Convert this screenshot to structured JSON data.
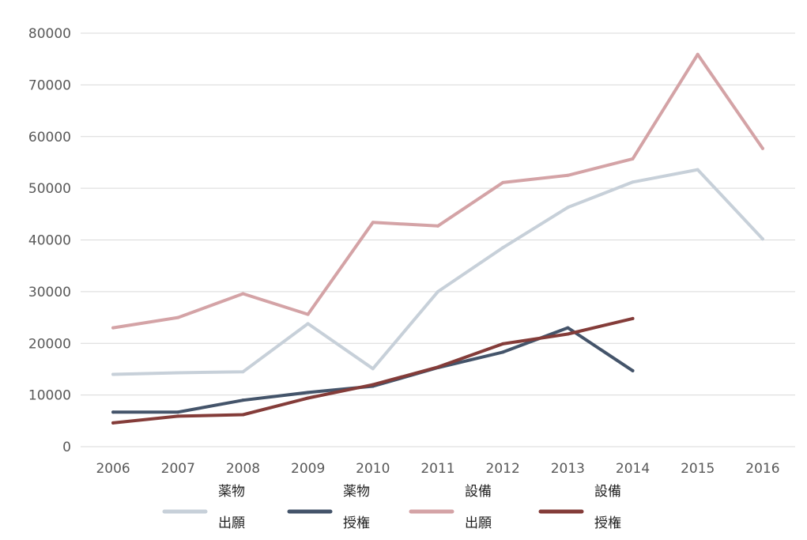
{
  "chart_data": {
    "type": "line",
    "categories": [
      "2006",
      "2007",
      "2008",
      "2009",
      "2010",
      "2011",
      "2012",
      "2013",
      "2014",
      "2015",
      "2016"
    ],
    "ylim": [
      0,
      80000
    ],
    "yticks": [
      "0",
      "10000",
      "20000",
      "30000",
      "40000",
      "50000",
      "60000",
      "70000",
      "80000"
    ],
    "grid": true,
    "legend_position": "bottom",
    "series": [
      {
        "name_line1": "薬物",
        "name_line2": "出願",
        "color": "#c7d0d9",
        "values": [
          14000,
          14300,
          14500,
          23800,
          15100,
          30000,
          38500,
          46300,
          51200,
          53600,
          40200
        ]
      },
      {
        "name_line1": "薬物",
        "name_line2": "授権",
        "color": "#44546a",
        "values": [
          6700,
          6700,
          9000,
          10500,
          11700,
          15300,
          18300,
          23000,
          14700,
          null,
          null
        ]
      },
      {
        "name_line1": "設備",
        "name_line2": "出願",
        "color": "#d4a3a6",
        "values": [
          23000,
          25000,
          29600,
          25600,
          43400,
          42700,
          51100,
          52500,
          55700,
          75900,
          57700
        ]
      },
      {
        "name_line1": "設備",
        "name_line2": "授権",
        "color": "#843c39",
        "values": [
          4600,
          5900,
          6200,
          9400,
          12000,
          15400,
          19900,
          21800,
          24800,
          null,
          null
        ]
      }
    ]
  }
}
